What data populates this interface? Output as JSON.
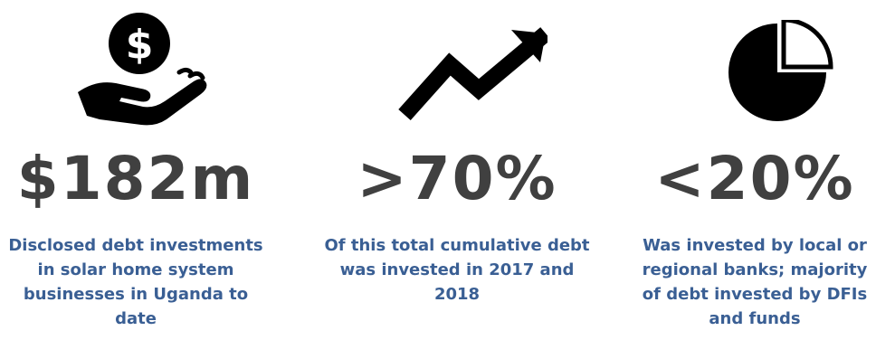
{
  "stats": [
    {
      "icon": "hand-dollar-icon",
      "value": "$182m",
      "description": "Disclosed debt investments in solar home system businesses in Uganda to date"
    },
    {
      "icon": "trend-up-arrow-icon",
      "value": ">70%",
      "description": "Of this total cumulative debt was invested in 2017 and 2018"
    },
    {
      "icon": "pie-chart-icon",
      "value": "<20%",
      "description": "Was invested by local or regional banks; majority of debt invested by DFIs and funds"
    }
  ],
  "colors": {
    "stat_text": "#404040",
    "description_text": "#3a5f94",
    "icon_fill": "#000000"
  }
}
